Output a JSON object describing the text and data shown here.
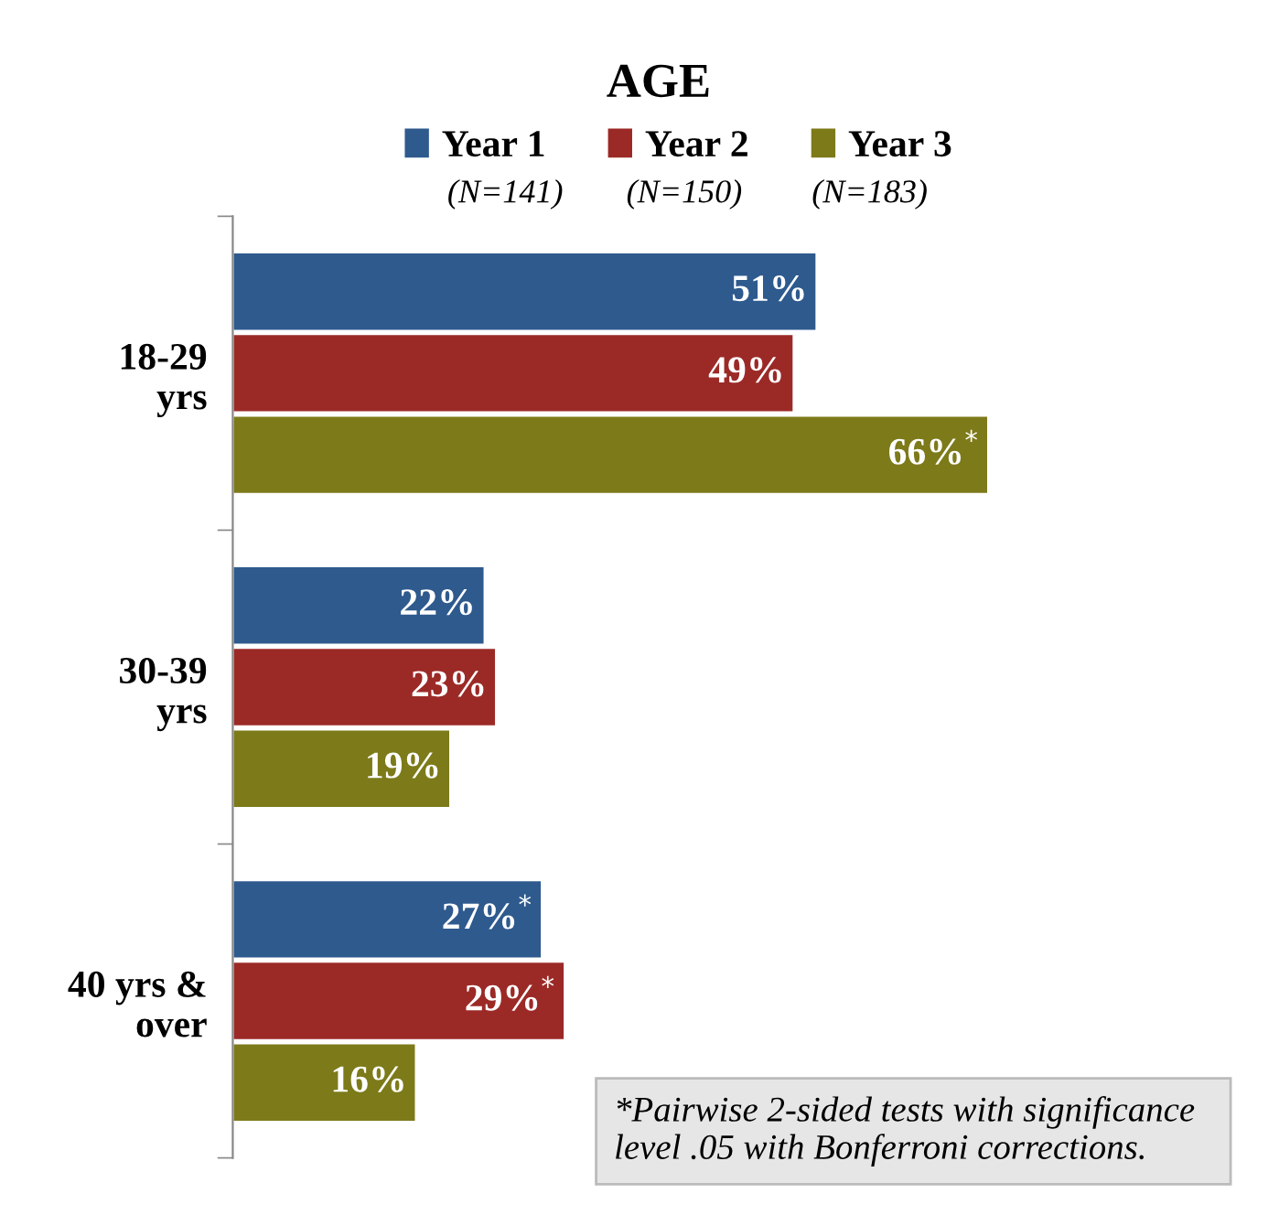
{
  "chart_data": {
    "type": "bar",
    "orientation": "horizontal",
    "title": "AGE",
    "categories": [
      "18-29\nyrs",
      "30-39\nyrs",
      "40 yrs &\nover"
    ],
    "series": [
      {
        "name": "Year 1",
        "color": "#2e5a8e",
        "values": [
          51,
          22,
          27
        ],
        "value_labels": [
          "51%",
          "22%",
          "27%$^{*}$"
        ]
      },
      {
        "name": "Year 2",
        "color": "#9b2a27",
        "values": [
          49,
          23,
          29
        ],
        "value_labels": [
          "49%",
          "23%",
          "29%$^{*}$"
        ]
      },
      {
        "name": "Year 3",
        "color": "#7d7a1a",
        "values": [
          66,
          19,
          16
        ],
        "value_labels": [
          "66%$^{*}$",
          "19%",
          "16%"
        ]
      }
    ],
    "legend": "top",
    "annotations": [
      "(N=141)",
      "(N=150)",
      "(N=183)",
      "*Pairwise 2-sided tests with significance   level .05 with Bonferroni corrections."
    ]
  }
}
